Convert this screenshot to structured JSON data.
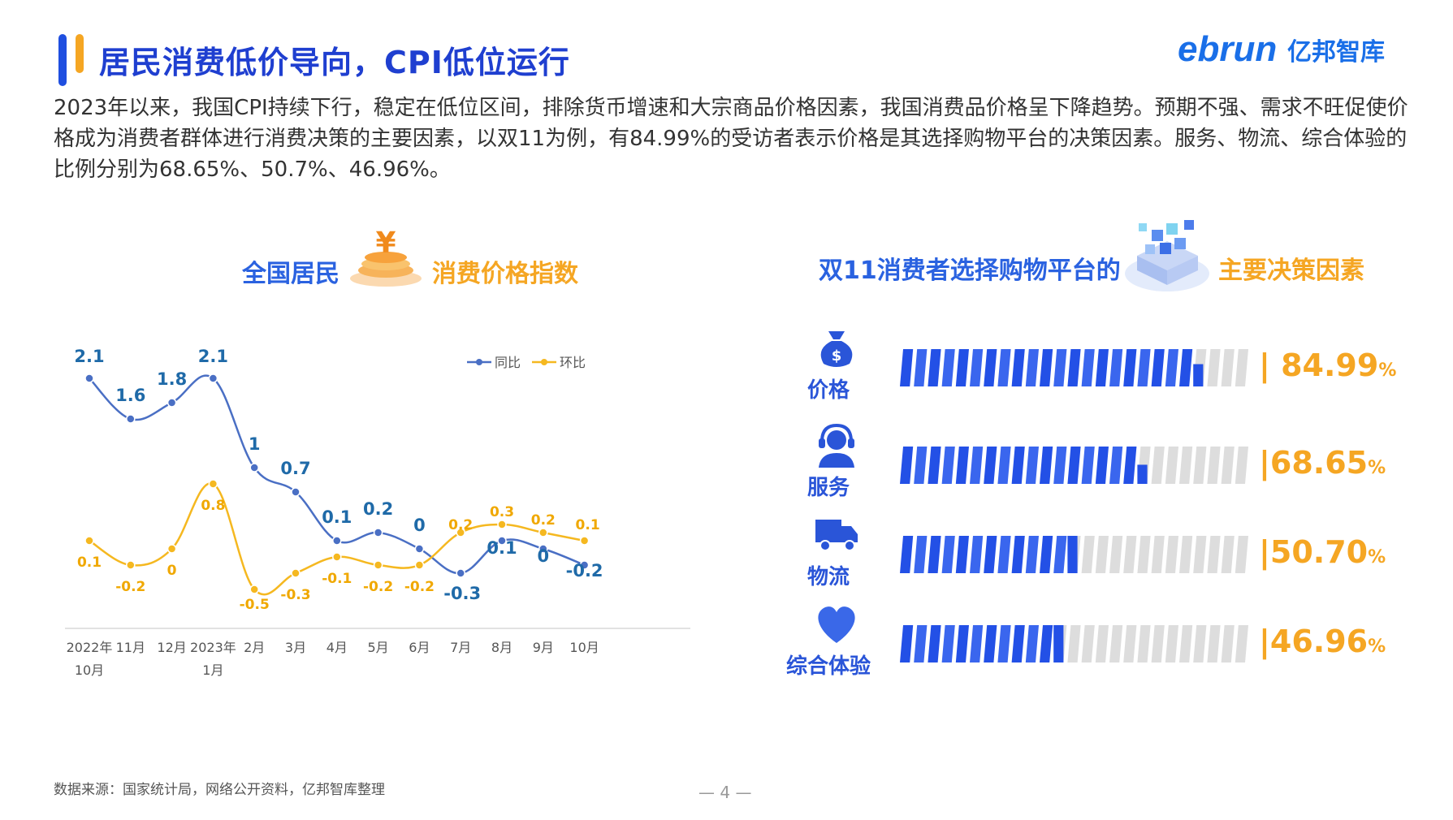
{
  "header": {
    "title": "居民消费低价导向，CPI低位运行",
    "logo_text": "ebrun亿邦智库"
  },
  "description": "2023年以来，我国CPI持续下行，稳定在低位区间，排除货币增速和大宗商品价格因素，我国消费品价格呈下降趋势。预期不强、需求不旺促使价格成为消费者群体进行消费决策的主要因素，以双11为例，有84.99%的受访者表示价格是其选择购物平台的决策因素。服务、物流、综合体验的比例分别为68.65%、50.7%、46.96%。",
  "left_section": {
    "title_part1": "全国居民",
    "title_part2": "消费价格指数"
  },
  "right_section": {
    "title_part1": "双11消费者选择购物平台的",
    "title_part2": "主要决策因素"
  },
  "chart_data": [
    {
      "type": "line",
      "categories": [
        "2022年10月",
        "11月",
        "12月",
        "2023年1月",
        "2月",
        "3月",
        "4月",
        "5月",
        "6月",
        "7月",
        "8月",
        "9月",
        "10月"
      ],
      "category_lines": [
        [
          "2022年",
          "10月"
        ],
        [
          "11月"
        ],
        [
          "12月"
        ],
        [
          "2023年",
          "1月"
        ],
        [
          "2月"
        ],
        [
          "3月"
        ],
        [
          "4月"
        ],
        [
          "5月"
        ],
        [
          "6月"
        ],
        [
          "7月"
        ],
        [
          "8月"
        ],
        [
          "9月"
        ],
        [
          "10月"
        ]
      ],
      "series": [
        {
          "name": "同比",
          "color": "#4a6fc4",
          "label_color": "#1f6aa8",
          "values": [
            2.1,
            1.6,
            1.8,
            2.1,
            1,
            0.7,
            0.1,
            0.2,
            0,
            -0.3,
            0.1,
            0,
            -0.2
          ]
        },
        {
          "name": "环比",
          "color": "#f5b820",
          "label_color": "#f0a800",
          "values": [
            0.1,
            -0.2,
            0,
            0.8,
            -0.5,
            -0.3,
            -0.1,
            -0.2,
            -0.2,
            0.2,
            0.3,
            0.2,
            0.1
          ]
        }
      ],
      "legend": "top-right",
      "grid": false
    },
    {
      "type": "bar",
      "categories": [
        "价格",
        "服务",
        "物流",
        "综合体验"
      ],
      "values": [
        84.99,
        68.65,
        50.7,
        46.96
      ],
      "value_labels": [
        "| 84.99",
        "|68.65",
        "|50.70",
        "|46.96"
      ],
      "unit": "%",
      "icons": [
        "money-bag-icon",
        "headset-icon",
        "truck-icon",
        "heart-icon"
      ],
      "ylim": [
        0,
        100
      ]
    }
  ],
  "colors": {
    "primary": "#1f4fe0",
    "accent": "#f5a623",
    "bar_fill": "#2a55e8",
    "bar_empty": "#dddddd"
  },
  "footer": {
    "source": "数据来源：国家统计局，网络公开资料，亿邦智库整理",
    "page": "— 4 —"
  }
}
